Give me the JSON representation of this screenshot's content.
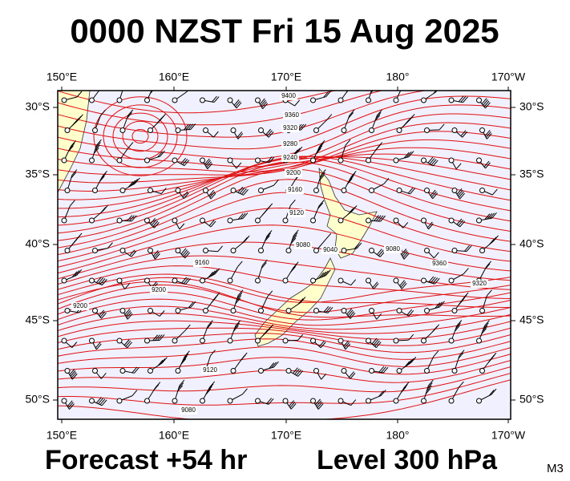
{
  "header": {
    "title": "0000 NZST Fri 15 Aug 2025"
  },
  "footer": {
    "forecast": "Forecast +54 hr",
    "level": "Level 300 hPa",
    "model": "M3"
  },
  "map": {
    "longitude_labels": [
      "150°E",
      "160°E",
      "170°E",
      "180°",
      "170°W"
    ],
    "latitude_labels": [
      "30°S",
      "35°S",
      "40°S",
      "45°S",
      "50°S"
    ],
    "contour_labels": [
      "9400",
      "9360",
      "9320",
      "9280",
      "9240",
      "9200",
      "9160",
      "9120",
      "9080",
      "9040",
      "9160",
      "9200",
      "9200",
      "9080",
      "9360",
      "9320",
      "9120",
      "9080"
    ]
  }
}
